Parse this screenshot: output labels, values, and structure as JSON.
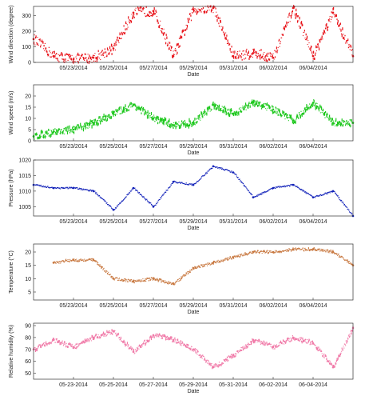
{
  "chart_data": [
    {
      "type": "scatter",
      "xlabel": "Date",
      "ylabel": "Wind direction (degree)",
      "x_range": [
        "2014-05-21",
        "2014-06-06"
      ],
      "ylim": [
        0,
        360
      ],
      "yticks": [
        0,
        100,
        200,
        300
      ],
      "xtick_labels": [
        "05/23/2014",
        "05/25/2014",
        "05/27/2014",
        "05/29/2014",
        "05/31/2014",
        "06/02/2014",
        "06/04/2014"
      ],
      "color": "#e8141b",
      "series": [
        {
          "x": [
            "2014-05-21",
            "2014-05-22",
            "2014-05-23",
            "2014-05-24",
            "2014-05-25",
            "2014-05-26",
            "2014-05-27",
            "2014-05-28",
            "2014-05-29",
            "2014-05-30",
            "2014-05-31",
            "2014-06-01",
            "2014-06-02",
            "2014-06-03",
            "2014-06-04",
            "2014-06-05",
            "2014-06-06"
          ],
          "values": [
            150,
            40,
            20,
            30,
            90,
            320,
            330,
            40,
            340,
            350,
            40,
            60,
            30,
            350,
            40,
            320,
            40
          ]
        }
      ]
    },
    {
      "type": "line",
      "xlabel": "Date",
      "ylabel": "Wind speed (m/s)",
      "x_range": [
        "2014-05-21",
        "2014-06-06"
      ],
      "ylim": [
        0,
        25
      ],
      "yticks": [
        0,
        5,
        10,
        15,
        20
      ],
      "xtick_labels": [
        "05/23/2014",
        "05/25/2014",
        "05/27/2014",
        "05/29/2014",
        "05/31/2014",
        "06/02/2014",
        "06/04/2014"
      ],
      "color": "#1ec81e",
      "series": [
        {
          "x": [
            "2014-05-21",
            "2014-05-22",
            "2014-05-23",
            "2014-05-24",
            "2014-05-25",
            "2014-05-26",
            "2014-05-27",
            "2014-05-28",
            "2014-05-29",
            "2014-05-30",
            "2014-05-31",
            "2014-06-01",
            "2014-06-02",
            "2014-06-03",
            "2014-06-04",
            "2014-06-05",
            "2014-06-06"
          ],
          "values": [
            2,
            4,
            5,
            8,
            12,
            16,
            10,
            7,
            8,
            16,
            12,
            17,
            14,
            9,
            17,
            8,
            8
          ]
        }
      ]
    },
    {
      "type": "line",
      "xlabel": "Date",
      "ylabel": "Pressure (hPa)",
      "x_range": [
        "2014-05-21",
        "2014-06-06"
      ],
      "ylim": [
        1002,
        1020
      ],
      "yticks": [
        1005,
        1010,
        1015,
        1020
      ],
      "xtick_labels": [
        "05/23/2014",
        "05/25/2014",
        "05/27/2014",
        "05/29/2014",
        "05/31/2014",
        "06/02/2014",
        "06/04/2014"
      ],
      "color": "#1020b8",
      "series": [
        {
          "x": [
            "2014-05-21",
            "2014-05-22",
            "2014-05-23",
            "2014-05-24",
            "2014-05-25",
            "2014-05-26",
            "2014-05-27",
            "2014-05-28",
            "2014-05-29",
            "2014-05-30",
            "2014-05-31",
            "2014-06-01",
            "2014-06-02",
            "2014-06-03",
            "2014-06-04",
            "2014-06-05",
            "2014-06-06"
          ],
          "values": [
            1012,
            1011,
            1011,
            1010,
            1004,
            1011,
            1005,
            1013,
            1012,
            1018,
            1016,
            1008,
            1011,
            1012,
            1008,
            1010,
            1002
          ]
        }
      ]
    },
    {
      "type": "scatter",
      "xlabel": "Date",
      "ylabel": "Temperature (°C)",
      "x_range": [
        "2014-05-21",
        "2014-06-06"
      ],
      "ylim": [
        2,
        23
      ],
      "yticks": [
        5,
        10,
        15,
        20
      ],
      "xtick_labels": [
        "05/23/2014",
        "05/25/2014",
        "05/27/2014",
        "05/29/2014",
        "05/31/2014",
        "06/02/2014",
        "06/04/2014"
      ],
      "color": "#c87840",
      "series": [
        {
          "x": [
            "2014-05-21",
            "2014-05-22",
            "2014-05-23",
            "2014-05-24",
            "2014-05-25",
            "2014-05-26",
            "2014-05-27",
            "2014-05-28",
            "2014-05-29",
            "2014-05-30",
            "2014-05-31",
            "2014-06-01",
            "2014-06-02",
            "2014-06-03",
            "2014-06-04",
            "2014-06-05",
            "2014-06-06"
          ],
          "values": [
            null,
            16,
            17,
            17,
            10,
            9,
            10,
            8,
            14,
            16,
            18,
            20,
            20,
            21,
            21,
            20,
            15
          ]
        }
      ]
    },
    {
      "type": "line",
      "xlabel": "Date",
      "ylabel": "Relative humidity (%)",
      "x_range": [
        "2014-05-21",
        "2014-06-06"
      ],
      "ylim": [
        45,
        92
      ],
      "yticks": [
        50,
        60,
        70,
        80,
        90
      ],
      "xtick_labels": [
        "05-23-2014",
        "05-25-2014",
        "05-27-2014",
        "05-29-2014",
        "05-31-2014",
        "06-02-2014",
        "06-04-2014"
      ],
      "color": "#f07aa8",
      "series": [
        {
          "x": [
            "2014-05-21",
            "2014-05-22",
            "2014-05-23",
            "2014-05-24",
            "2014-05-25",
            "2014-05-26",
            "2014-05-27",
            "2014-05-28",
            "2014-05-29",
            "2014-05-30",
            "2014-05-31",
            "2014-06-01",
            "2014-06-02",
            "2014-06-03",
            "2014-06-04",
            "2014-06-05",
            "2014-06-06"
          ],
          "values": [
            70,
            78,
            72,
            80,
            85,
            68,
            82,
            78,
            70,
            55,
            65,
            78,
            72,
            80,
            75,
            55,
            88
          ]
        }
      ]
    }
  ]
}
